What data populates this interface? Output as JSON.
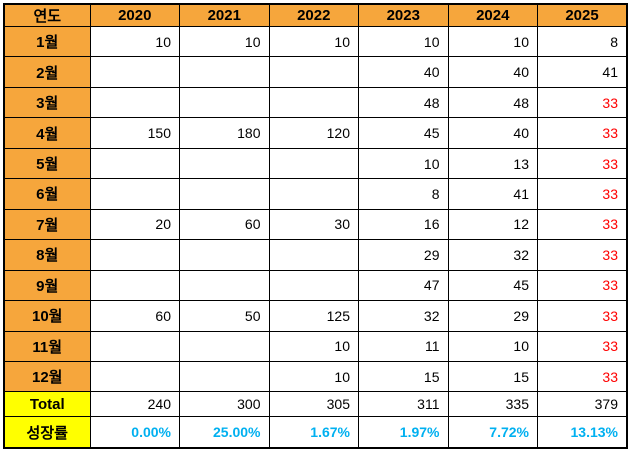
{
  "table": {
    "corner_label": "연도",
    "years": [
      "2020",
      "2021",
      "2022",
      "2023",
      "2024",
      "2025"
    ],
    "rows": [
      {
        "type": "month",
        "label": "1월",
        "values": [
          "10",
          "10",
          "10",
          "10",
          "10",
          "8"
        ],
        "red": [
          0,
          0,
          0,
          0,
          0,
          0
        ]
      },
      {
        "type": "month",
        "label": "2월",
        "values": [
          "",
          "",
          "",
          "40",
          "40",
          "41"
        ],
        "red": [
          0,
          0,
          0,
          0,
          0,
          0
        ]
      },
      {
        "type": "month",
        "label": "3월",
        "values": [
          "",
          "",
          "",
          "48",
          "48",
          "33"
        ],
        "red": [
          0,
          0,
          0,
          0,
          0,
          1
        ]
      },
      {
        "type": "month",
        "label": "4월",
        "values": [
          "150",
          "180",
          "120",
          "45",
          "40",
          "33"
        ],
        "red": [
          0,
          0,
          0,
          0,
          0,
          1
        ]
      },
      {
        "type": "month",
        "label": "5월",
        "values": [
          "",
          "",
          "",
          "10",
          "13",
          "33"
        ],
        "red": [
          0,
          0,
          0,
          0,
          0,
          1
        ]
      },
      {
        "type": "month",
        "label": "6월",
        "values": [
          "",
          "",
          "",
          "8",
          "41",
          "33"
        ],
        "red": [
          0,
          0,
          0,
          0,
          0,
          1
        ]
      },
      {
        "type": "month",
        "label": "7월",
        "values": [
          "20",
          "60",
          "30",
          "16",
          "12",
          "33"
        ],
        "red": [
          0,
          0,
          0,
          0,
          0,
          1
        ]
      },
      {
        "type": "month",
        "label": "8월",
        "values": [
          "",
          "",
          "",
          "29",
          "32",
          "33"
        ],
        "red": [
          0,
          0,
          0,
          0,
          0,
          1
        ]
      },
      {
        "type": "month",
        "label": "9월",
        "values": [
          "",
          "",
          "",
          "47",
          "45",
          "33"
        ],
        "red": [
          0,
          0,
          0,
          0,
          0,
          1
        ]
      },
      {
        "type": "month",
        "label": "10월",
        "values": [
          "60",
          "50",
          "125",
          "32",
          "29",
          "33"
        ],
        "red": [
          0,
          0,
          0,
          0,
          0,
          1
        ]
      },
      {
        "type": "month",
        "label": "11월",
        "values": [
          "",
          "",
          "10",
          "11",
          "10",
          "33"
        ],
        "red": [
          0,
          0,
          0,
          0,
          0,
          1
        ]
      },
      {
        "type": "month",
        "label": "12월",
        "values": [
          "",
          "",
          "10",
          "15",
          "15",
          "33"
        ],
        "red": [
          0,
          0,
          0,
          0,
          0,
          1
        ]
      },
      {
        "type": "total",
        "label": "Total",
        "values": [
          "240",
          "300",
          "305",
          "311",
          "335",
          "379"
        ],
        "red": [
          0,
          0,
          0,
          0,
          0,
          0
        ]
      },
      {
        "type": "growth",
        "label": "성장률",
        "values": [
          "0.00%",
          "25.00%",
          "1.67%",
          "1.97%",
          "7.72%",
          "13.13%"
        ],
        "red": [
          0,
          0,
          0,
          0,
          0,
          0
        ]
      }
    ],
    "colors": {
      "header_bg": "#F6A63C",
      "summary_label_bg": "#FFFF00",
      "growth_text": "#00B0F0",
      "red_text": "#FF0000",
      "border": "#000000"
    }
  }
}
